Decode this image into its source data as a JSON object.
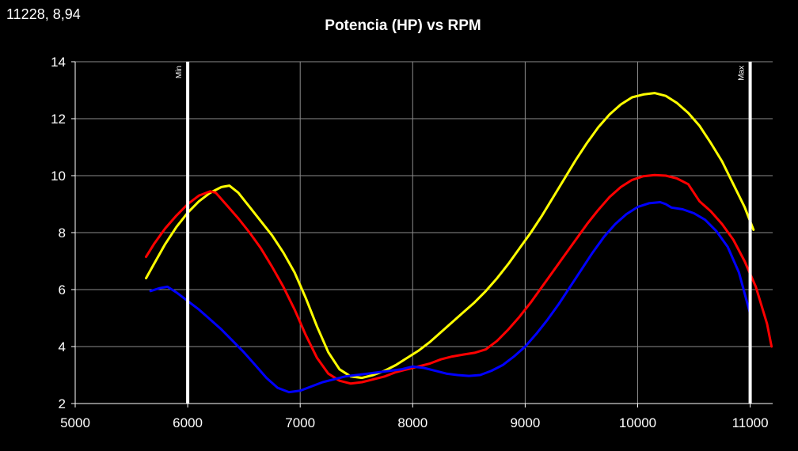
{
  "cursor_readout": "11228, 8,94",
  "colors": {
    "background": "#000000",
    "grid": "#8c8c8c",
    "axis": "#ffffff",
    "text": "#ffffff",
    "marker": "#ffffff"
  },
  "chart_data": {
    "type": "line",
    "title": "Potencia (HP) vs RPM",
    "xlabel": "",
    "ylabel": "",
    "xlim": [
      5000,
      11200
    ],
    "ylim": [
      2,
      14
    ],
    "x_ticks": [
      5000,
      6000,
      7000,
      8000,
      9000,
      10000,
      11000
    ],
    "y_ticks": [
      2,
      4,
      6,
      8,
      10,
      12,
      14
    ],
    "x_tick_labels": [
      "5000",
      "6000",
      "7000",
      "8000",
      "9000",
      "10000",
      "11000"
    ],
    "y_tick_labels": [
      "2",
      "4",
      "6",
      "8",
      "10",
      "12",
      "14"
    ],
    "grid": true,
    "legend": "none",
    "markers": [
      {
        "label": "Min",
        "x": 6000
      },
      {
        "label": "Max",
        "x": 11000
      }
    ],
    "series": [
      {
        "color": "#ffff00",
        "x": [
          5630,
          5700,
          5800,
          5900,
          6000,
          6100,
          6200,
          6300,
          6370,
          6450,
          6550,
          6650,
          6750,
          6850,
          6950,
          7050,
          7150,
          7250,
          7350,
          7450,
          7550,
          7650,
          7750,
          7850,
          7950,
          8050,
          8150,
          8250,
          8350,
          8450,
          8550,
          8650,
          8750,
          8850,
          8950,
          9050,
          9150,
          9250,
          9350,
          9450,
          9550,
          9650,
          9750,
          9850,
          9950,
          10050,
          10150,
          10250,
          10350,
          10450,
          10550,
          10650,
          10750,
          10850,
          10950,
          11030
        ],
        "y": [
          6.4,
          6.9,
          7.6,
          8.2,
          8.7,
          9.1,
          9.4,
          9.6,
          9.65,
          9.4,
          8.9,
          8.4,
          7.9,
          7.3,
          6.6,
          5.7,
          4.7,
          3.8,
          3.2,
          2.95,
          2.9,
          3.0,
          3.15,
          3.35,
          3.6,
          3.85,
          4.15,
          4.5,
          4.85,
          5.2,
          5.55,
          5.95,
          6.4,
          6.9,
          7.45,
          8.0,
          8.6,
          9.25,
          9.9,
          10.55,
          11.15,
          11.7,
          12.15,
          12.5,
          12.75,
          12.85,
          12.9,
          12.8,
          12.55,
          12.2,
          11.75,
          11.15,
          10.5,
          9.7,
          8.9,
          8.1
        ]
      },
      {
        "color": "#ff0000",
        "x": [
          5630,
          5700,
          5800,
          5900,
          6000,
          6100,
          6200,
          6250,
          6350,
          6450,
          6550,
          6650,
          6750,
          6850,
          6950,
          7050,
          7150,
          7250,
          7350,
          7450,
          7550,
          7650,
          7750,
          7850,
          7950,
          8050,
          8150,
          8250,
          8350,
          8450,
          8550,
          8650,
          8750,
          8850,
          8950,
          9050,
          9150,
          9250,
          9350,
          9450,
          9550,
          9650,
          9750,
          9850,
          9950,
          10050,
          10150,
          10250,
          10350,
          10450,
          10550,
          10650,
          10750,
          10850,
          10950,
          11050,
          11150,
          11190
        ],
        "y": [
          7.15,
          7.6,
          8.15,
          8.6,
          9.0,
          9.3,
          9.45,
          9.4,
          8.95,
          8.5,
          8.0,
          7.45,
          6.8,
          6.1,
          5.3,
          4.4,
          3.6,
          3.05,
          2.8,
          2.7,
          2.75,
          2.85,
          2.95,
          3.1,
          3.2,
          3.3,
          3.4,
          3.55,
          3.65,
          3.72,
          3.78,
          3.9,
          4.2,
          4.6,
          5.05,
          5.55,
          6.1,
          6.65,
          7.2,
          7.75,
          8.3,
          8.8,
          9.25,
          9.6,
          9.85,
          9.98,
          10.02,
          10.0,
          9.9,
          9.7,
          9.1,
          8.75,
          8.3,
          7.75,
          7.0,
          6.1,
          4.8,
          4.0
        ]
      },
      {
        "color": "#0000ff",
        "x": [
          5670,
          5750,
          5820,
          5900,
          6000,
          6100,
          6200,
          6300,
          6400,
          6500,
          6600,
          6700,
          6800,
          6900,
          7000,
          7100,
          7200,
          7300,
          7400,
          7500,
          7600,
          7700,
          7800,
          7900,
          8000,
          8100,
          8200,
          8300,
          8400,
          8500,
          8600,
          8700,
          8800,
          8900,
          9000,
          9100,
          9200,
          9300,
          9400,
          9500,
          9600,
          9700,
          9800,
          9900,
          10000,
          10100,
          10200,
          10250,
          10300,
          10400,
          10500,
          10600,
          10700,
          10800,
          10900,
          11000
        ],
        "y": [
          5.95,
          6.05,
          6.1,
          5.9,
          5.6,
          5.3,
          4.95,
          4.6,
          4.2,
          3.8,
          3.35,
          2.9,
          2.55,
          2.4,
          2.45,
          2.6,
          2.75,
          2.85,
          2.95,
          3.0,
          3.05,
          3.1,
          3.15,
          3.2,
          3.3,
          3.25,
          3.15,
          3.05,
          3.0,
          2.97,
          3.0,
          3.15,
          3.35,
          3.65,
          4.0,
          4.45,
          4.95,
          5.5,
          6.1,
          6.7,
          7.3,
          7.85,
          8.3,
          8.65,
          8.9,
          9.03,
          9.07,
          9.0,
          8.88,
          8.82,
          8.68,
          8.45,
          8.05,
          7.5,
          6.6,
          5.15
        ]
      }
    ]
  }
}
